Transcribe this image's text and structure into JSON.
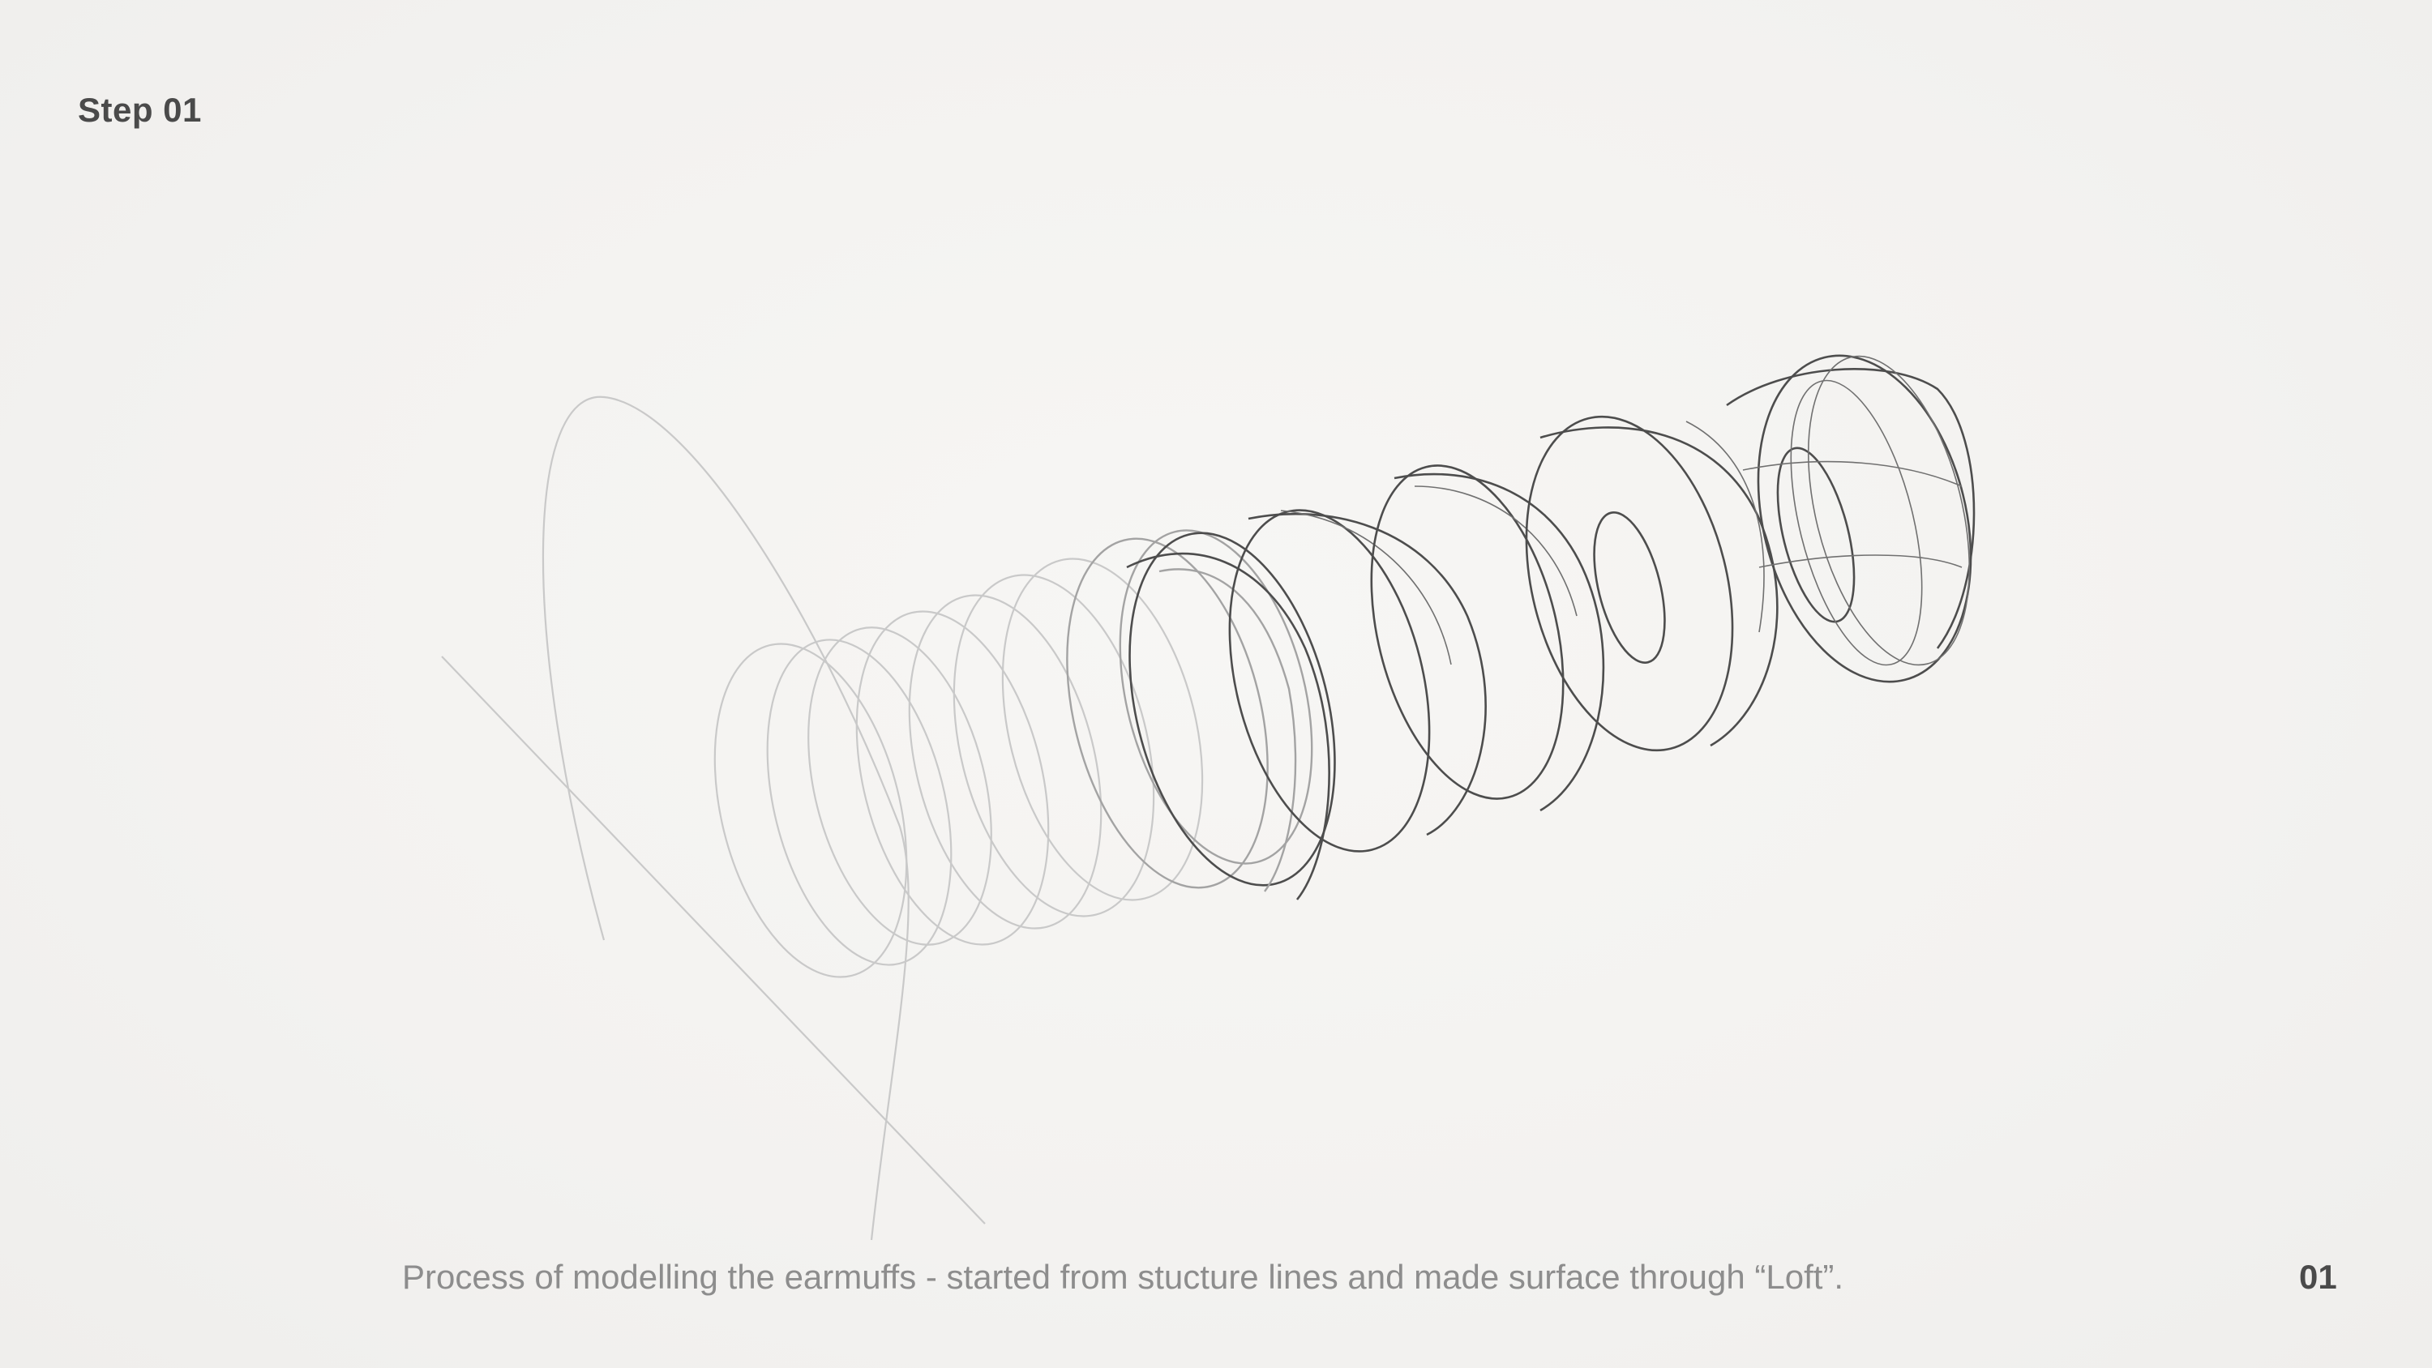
{
  "slide": {
    "step_title": "Step 01",
    "caption": "Process of modelling the earmuffs - started from stucture lines and made surface through “Loft”.",
    "page_number": "01"
  },
  "colors": {
    "background": "#f4f3f1",
    "heading_text": "#4a4a4a",
    "caption_text": "#8d8d8d",
    "construction_line": "#c9c9c9",
    "surface_line": "#4d4d4d"
  }
}
